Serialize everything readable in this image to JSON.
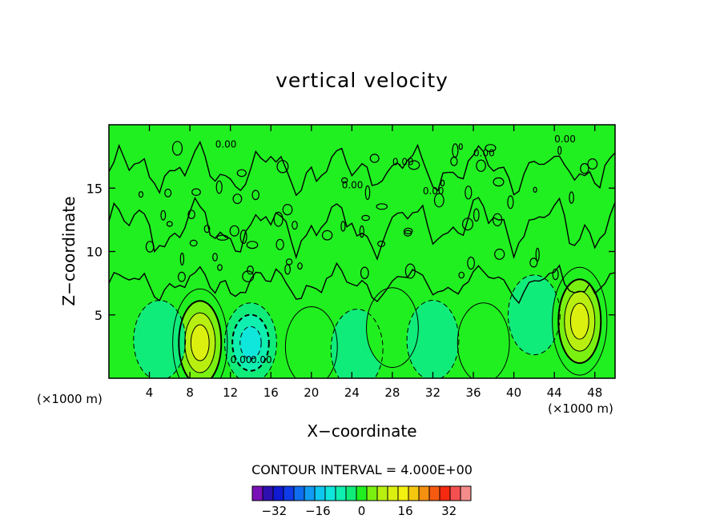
{
  "chart_data": {
    "type": "contour",
    "title": "vertical velocity",
    "xlabel": "X−coordinate",
    "ylabel": "Z−coordinate",
    "x_unit_left": "(×1000 m)",
    "x_unit_right": "(×1000 m)",
    "xlim": [
      0,
      50
    ],
    "ylim": [
      0,
      20
    ],
    "x_ticks": [
      4,
      8,
      12,
      16,
      20,
      24,
      28,
      32,
      36,
      40,
      44,
      48
    ],
    "x_tick_labels": [
      "4",
      "8",
      "12",
      "16",
      "20",
      "24",
      "28",
      "32",
      "36",
      "40",
      "44",
      "48"
    ],
    "y_ticks": [
      5,
      10,
      15
    ],
    "y_tick_labels": [
      "5",
      "10",
      "15"
    ],
    "contour_interval_label": "CONTOUR INTERVAL = 4.000E+00",
    "contour_interval": 4.0,
    "zero_contour_labels": [
      "0.00",
      "0.00",
      "0.00",
      "0.00",
      "0.00",
      "0.00",
      "0.00",
      "0.00"
    ],
    "features": [
      {
        "kind": "updraft",
        "x": 9.0,
        "z": 2.8,
        "peak": 16
      },
      {
        "kind": "downdraft",
        "x": 14.0,
        "z": 2.8,
        "peak": -12
      },
      {
        "kind": "updraft",
        "x": 20.0,
        "z": 2.5,
        "peak": 6
      },
      {
        "kind": "downdraft",
        "x": 5.0,
        "z": 3.0,
        "peak": -6
      },
      {
        "kind": "downdraft",
        "x": 24.5,
        "z": 2.3,
        "peak": -6
      },
      {
        "kind": "updraft",
        "x": 28.0,
        "z": 4.0,
        "peak": 4
      },
      {
        "kind": "downdraft",
        "x": 32.0,
        "z": 3.0,
        "peak": -6
      },
      {
        "kind": "updraft",
        "x": 37.0,
        "z": 2.8,
        "peak": 6
      },
      {
        "kind": "downdraft",
        "x": 42.0,
        "z": 5.0,
        "peak": -4
      },
      {
        "kind": "updraft",
        "x": 46.5,
        "z": 4.5,
        "peak": 18
      }
    ],
    "colorbar": {
      "levels": [
        -40,
        -36,
        -32,
        -28,
        -24,
        -20,
        -16,
        -12,
        -8,
        -4,
        0,
        4,
        8,
        12,
        16,
        20,
        24,
        28,
        32,
        36,
        40
      ],
      "colors": [
        "#7a10b8",
        "#2e10b0",
        "#0f1ad2",
        "#0f3ce8",
        "#0f6ef0",
        "#0f9cf2",
        "#0fc6ef",
        "#0fe6dc",
        "#0fefb0",
        "#10ec7a",
        "#20f020",
        "#7af010",
        "#b8ef10",
        "#dcf010",
        "#f4f010",
        "#f5c810",
        "#f59010",
        "#f55a10",
        "#f52a10",
        "#f55050",
        "#f58c8c"
      ],
      "tick_labels": [
        "−32",
        "−16",
        "0",
        "16",
        "32"
      ],
      "tick_values": [
        -32,
        -16,
        0,
        16,
        32
      ]
    }
  }
}
